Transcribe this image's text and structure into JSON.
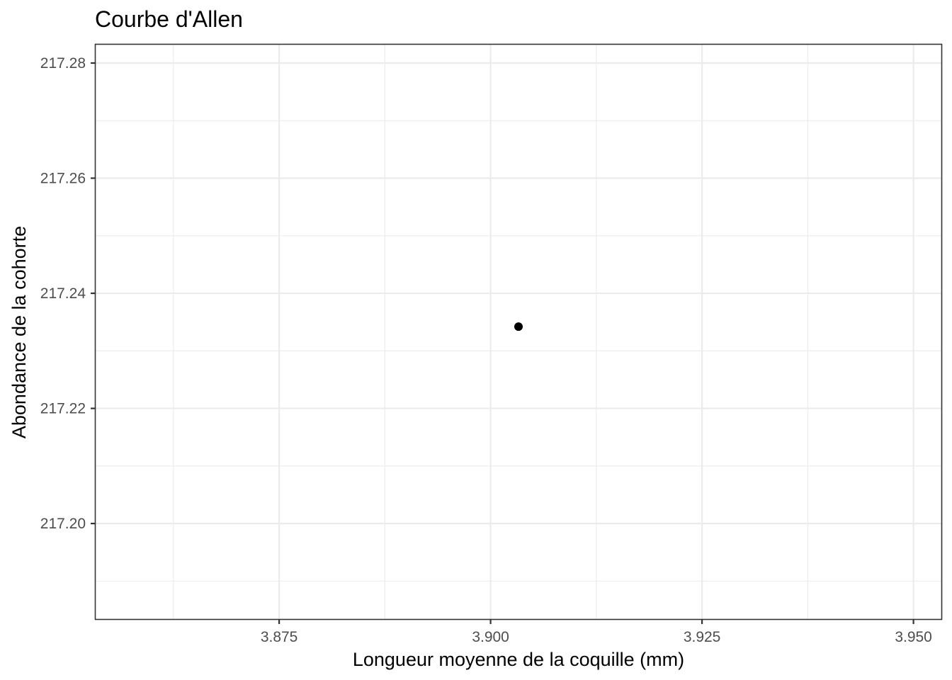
{
  "chart_data": {
    "type": "scatter",
    "title": "Courbe d'Allen",
    "xlabel": "Longueur moyenne de la coquille (mm)",
    "ylabel": "Abondance de la cohorte",
    "xlim": [
      3.8533,
      3.9533
    ],
    "ylim": [
      217.1834,
      217.2832
    ],
    "x_major_ticks": [
      3.875,
      3.9,
      3.925,
      3.95
    ],
    "x_tick_labels": [
      "3.875",
      "3.900",
      "3.925",
      "3.950"
    ],
    "x_minor_ticks": [
      3.8625,
      3.8875,
      3.9125,
      3.9375
    ],
    "y_major_ticks": [
      217.2,
      217.22,
      217.24,
      217.26,
      217.28
    ],
    "y_tick_labels": [
      "217.20",
      "217.22",
      "217.24",
      "217.26",
      "217.28"
    ],
    "y_minor_ticks": [
      217.19,
      217.21,
      217.23,
      217.25,
      217.27
    ],
    "grid": true,
    "legend": "none",
    "point_color": "#000000",
    "points": [
      {
        "x": 3.9033,
        "y": 217.2342
      }
    ]
  }
}
